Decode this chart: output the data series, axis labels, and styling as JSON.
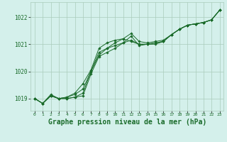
{
  "background_color": "#d4f0eb",
  "grid_color": "#aaccbb",
  "line_color": "#1a6b2a",
  "marker_color": "#1a6b2a",
  "title": "Graphe pression niveau de la mer (hPa)",
  "title_fontsize": 7.0,
  "tick_color": "#1a6b2a",
  "ylim": [
    1018.55,
    1022.55
  ],
  "xlim": [
    -0.5,
    23.5
  ],
  "yticks": [
    1019,
    1020,
    1021,
    1022
  ],
  "xticks": [
    0,
    1,
    2,
    3,
    4,
    5,
    6,
    7,
    8,
    9,
    10,
    11,
    12,
    13,
    14,
    15,
    16,
    17,
    18,
    19,
    20,
    21,
    22,
    23
  ],
  "series1": [
    1019.0,
    1018.82,
    1019.1,
    1019.0,
    1019.0,
    1019.05,
    1019.1,
    1019.9,
    1020.55,
    1020.7,
    1020.85,
    1021.05,
    1021.15,
    1021.0,
    1021.0,
    1021.05,
    1021.1,
    1021.35,
    1021.55,
    1021.7,
    1021.75,
    1021.8,
    1021.9,
    1022.25
  ],
  "series2": [
    1019.0,
    1018.82,
    1019.1,
    1019.0,
    1019.0,
    1019.05,
    1019.2,
    1020.0,
    1020.6,
    1020.85,
    1021.05,
    1021.2,
    1021.4,
    1021.1,
    1021.05,
    1021.1,
    1021.15,
    1021.35,
    1021.55,
    1021.7,
    1021.75,
    1021.8,
    1021.9,
    1022.25
  ],
  "series3": [
    1019.0,
    1018.82,
    1019.1,
    1019.0,
    1019.05,
    1019.15,
    1019.35,
    1020.0,
    1020.7,
    1020.85,
    1020.95,
    1021.05,
    1021.3,
    1020.95,
    1021.0,
    1021.05,
    1021.1,
    1021.35,
    1021.55,
    1021.7,
    1021.75,
    1021.8,
    1021.9,
    1022.25
  ],
  "series4": [
    1019.0,
    1018.82,
    1019.15,
    1019.0,
    1019.05,
    1019.2,
    1019.55,
    1020.05,
    1020.85,
    1021.05,
    1021.15,
    1021.2,
    1021.1,
    1021.0,
    1021.0,
    1021.0,
    1021.1,
    1021.35,
    1021.55,
    1021.7,
    1021.75,
    1021.8,
    1021.9,
    1022.25
  ]
}
